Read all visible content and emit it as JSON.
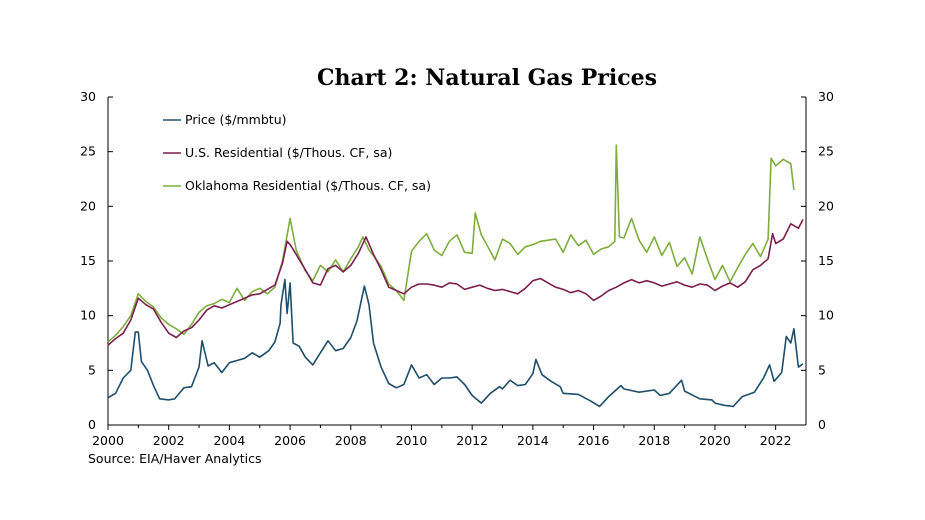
{
  "chart_data": {
    "type": "line",
    "title": "Chart 2: Natural Gas Prices",
    "source": "Source: EIA/Haver Analytics",
    "xlim": [
      2000,
      2023
    ],
    "x_ticks": [
      "2000",
      "2002",
      "2004",
      "2006",
      "2008",
      "2010",
      "2012",
      "2014",
      "2016",
      "2018",
      "2020",
      "2022"
    ],
    "ylim": [
      0,
      30
    ],
    "y_ticks": [
      "0",
      "5",
      "10",
      "15",
      "20",
      "25",
      "30"
    ],
    "y2_ticks": [
      "0",
      "5",
      "10",
      "15",
      "20",
      "25",
      "30"
    ],
    "legend_position": "top-left",
    "grid": false,
    "series": [
      {
        "name": "Price ($/mmbtu)",
        "color": "#1f4e6b",
        "points": [
          [
            2000.0,
            2.5
          ],
          [
            2000.25,
            2.9
          ],
          [
            2000.5,
            4.3
          ],
          [
            2000.75,
            5.0
          ],
          [
            2000.9,
            8.5
          ],
          [
            2001.0,
            8.5
          ],
          [
            2001.1,
            5.8
          ],
          [
            2001.3,
            5.0
          ],
          [
            2001.5,
            3.6
          ],
          [
            2001.7,
            2.4
          ],
          [
            2002.0,
            2.3
          ],
          [
            2002.2,
            2.4
          ],
          [
            2002.5,
            3.4
          ],
          [
            2002.75,
            3.5
          ],
          [
            2003.0,
            5.3
          ],
          [
            2003.1,
            7.7
          ],
          [
            2003.3,
            5.4
          ],
          [
            2003.5,
            5.7
          ],
          [
            2003.75,
            4.8
          ],
          [
            2004.0,
            5.7
          ],
          [
            2004.25,
            5.9
          ],
          [
            2004.5,
            6.1
          ],
          [
            2004.75,
            6.6
          ],
          [
            2005.0,
            6.2
          ],
          [
            2005.3,
            6.8
          ],
          [
            2005.5,
            7.6
          ],
          [
            2005.67,
            9.3
          ],
          [
            2005.7,
            11.0
          ],
          [
            2005.83,
            13.3
          ],
          [
            2005.9,
            10.2
          ],
          [
            2006.0,
            13.0
          ],
          [
            2006.1,
            7.5
          ],
          [
            2006.3,
            7.2
          ],
          [
            2006.5,
            6.2
          ],
          [
            2006.75,
            5.5
          ],
          [
            2007.0,
            6.6
          ],
          [
            2007.25,
            7.7
          ],
          [
            2007.5,
            6.8
          ],
          [
            2007.75,
            7.0
          ],
          [
            2008.0,
            8.0
          ],
          [
            2008.2,
            9.5
          ],
          [
            2008.45,
            12.7
          ],
          [
            2008.6,
            11.0
          ],
          [
            2008.75,
            7.5
          ],
          [
            2009.0,
            5.3
          ],
          [
            2009.25,
            3.8
          ],
          [
            2009.5,
            3.4
          ],
          [
            2009.75,
            3.7
          ],
          [
            2010.0,
            5.5
          ],
          [
            2010.25,
            4.3
          ],
          [
            2010.5,
            4.6
          ],
          [
            2010.75,
            3.7
          ],
          [
            2011.0,
            4.3
          ],
          [
            2011.25,
            4.3
          ],
          [
            2011.5,
            4.4
          ],
          [
            2011.75,
            3.7
          ],
          [
            2012.0,
            2.7
          ],
          [
            2012.3,
            2.0
          ],
          [
            2012.6,
            2.9
          ],
          [
            2012.9,
            3.5
          ],
          [
            2013.0,
            3.3
          ],
          [
            2013.25,
            4.1
          ],
          [
            2013.5,
            3.6
          ],
          [
            2013.75,
            3.7
          ],
          [
            2014.0,
            4.7
          ],
          [
            2014.1,
            6.0
          ],
          [
            2014.3,
            4.6
          ],
          [
            2014.6,
            4.0
          ],
          [
            2014.9,
            3.5
          ],
          [
            2015.0,
            2.9
          ],
          [
            2015.5,
            2.8
          ],
          [
            2015.9,
            2.2
          ],
          [
            2016.2,
            1.7
          ],
          [
            2016.5,
            2.6
          ],
          [
            2016.9,
            3.6
          ],
          [
            2017.0,
            3.3
          ],
          [
            2017.5,
            3.0
          ],
          [
            2018.0,
            3.2
          ],
          [
            2018.2,
            2.7
          ],
          [
            2018.5,
            2.9
          ],
          [
            2018.9,
            4.1
          ],
          [
            2019.0,
            3.1
          ],
          [
            2019.5,
            2.4
          ],
          [
            2019.9,
            2.3
          ],
          [
            2020.0,
            2.0
          ],
          [
            2020.3,
            1.8
          ],
          [
            2020.6,
            1.7
          ],
          [
            2020.9,
            2.6
          ],
          [
            2021.0,
            2.7
          ],
          [
            2021.3,
            3.0
          ],
          [
            2021.6,
            4.3
          ],
          [
            2021.8,
            5.5
          ],
          [
            2021.95,
            4.0
          ],
          [
            2022.2,
            4.8
          ],
          [
            2022.35,
            8.1
          ],
          [
            2022.5,
            7.5
          ],
          [
            2022.6,
            8.8
          ],
          [
            2022.75,
            5.3
          ],
          [
            2022.9,
            5.6
          ]
        ]
      },
      {
        "name": "U.S. Residential ($/Thous. CF, sa)",
        "color": "#7b1f4e",
        "points": [
          [
            2000.0,
            7.3
          ],
          [
            2000.25,
            7.9
          ],
          [
            2000.5,
            8.4
          ],
          [
            2000.75,
            9.6
          ],
          [
            2001.0,
            11.6
          ],
          [
            2001.25,
            11.0
          ],
          [
            2001.5,
            10.6
          ],
          [
            2001.75,
            9.4
          ],
          [
            2002.0,
            8.4
          ],
          [
            2002.25,
            8.0
          ],
          [
            2002.5,
            8.6
          ],
          [
            2002.75,
            8.9
          ],
          [
            2003.0,
            9.6
          ],
          [
            2003.25,
            10.5
          ],
          [
            2003.5,
            10.9
          ],
          [
            2003.75,
            10.7
          ],
          [
            2004.0,
            11.0
          ],
          [
            2004.25,
            11.3
          ],
          [
            2004.5,
            11.6
          ],
          [
            2004.75,
            11.9
          ],
          [
            2005.0,
            12.0
          ],
          [
            2005.25,
            12.4
          ],
          [
            2005.5,
            12.8
          ],
          [
            2005.75,
            14.8
          ],
          [
            2005.9,
            16.8
          ],
          [
            2006.0,
            16.5
          ],
          [
            2006.2,
            15.6
          ],
          [
            2006.5,
            14.2
          ],
          [
            2006.75,
            13.0
          ],
          [
            2007.0,
            12.8
          ],
          [
            2007.25,
            14.3
          ],
          [
            2007.5,
            14.6
          ],
          [
            2007.75,
            14.0
          ],
          [
            2008.0,
            14.6
          ],
          [
            2008.25,
            15.7
          ],
          [
            2008.5,
            17.2
          ],
          [
            2008.75,
            15.6
          ],
          [
            2009.0,
            14.2
          ],
          [
            2009.25,
            12.6
          ],
          [
            2009.5,
            12.3
          ],
          [
            2009.75,
            12.0
          ],
          [
            2010.0,
            12.6
          ],
          [
            2010.25,
            12.9
          ],
          [
            2010.5,
            12.9
          ],
          [
            2010.75,
            12.8
          ],
          [
            2011.0,
            12.6
          ],
          [
            2011.25,
            13.0
          ],
          [
            2011.5,
            12.9
          ],
          [
            2011.75,
            12.4
          ],
          [
            2012.0,
            12.6
          ],
          [
            2012.25,
            12.8
          ],
          [
            2012.5,
            12.5
          ],
          [
            2012.75,
            12.3
          ],
          [
            2013.0,
            12.4
          ],
          [
            2013.25,
            12.2
          ],
          [
            2013.5,
            12.0
          ],
          [
            2013.75,
            12.5
          ],
          [
            2014.0,
            13.2
          ],
          [
            2014.25,
            13.4
          ],
          [
            2014.5,
            13.0
          ],
          [
            2014.75,
            12.6
          ],
          [
            2015.0,
            12.4
          ],
          [
            2015.25,
            12.1
          ],
          [
            2015.5,
            12.3
          ],
          [
            2015.75,
            12.0
          ],
          [
            2016.0,
            11.4
          ],
          [
            2016.25,
            11.8
          ],
          [
            2016.5,
            12.3
          ],
          [
            2016.75,
            12.6
          ],
          [
            2017.0,
            13.0
          ],
          [
            2017.25,
            13.3
          ],
          [
            2017.5,
            13.0
          ],
          [
            2017.75,
            13.2
          ],
          [
            2018.0,
            13.0
          ],
          [
            2018.25,
            12.7
          ],
          [
            2018.5,
            12.9
          ],
          [
            2018.75,
            13.1
          ],
          [
            2019.0,
            12.8
          ],
          [
            2019.25,
            12.6
          ],
          [
            2019.5,
            12.9
          ],
          [
            2019.75,
            12.8
          ],
          [
            2020.0,
            12.3
          ],
          [
            2020.25,
            12.7
          ],
          [
            2020.5,
            13.0
          ],
          [
            2020.75,
            12.6
          ],
          [
            2021.0,
            13.1
          ],
          [
            2021.25,
            14.2
          ],
          [
            2021.5,
            14.6
          ],
          [
            2021.75,
            15.2
          ],
          [
            2021.9,
            17.5
          ],
          [
            2022.0,
            16.6
          ],
          [
            2022.25,
            17.0
          ],
          [
            2022.5,
            18.4
          ],
          [
            2022.75,
            18.0
          ],
          [
            2022.9,
            18.8
          ]
        ]
      },
      {
        "name": "Oklahoma Residential ($/Thous. CF, sa)",
        "color": "#7fad3d",
        "points": [
          [
            2000.0,
            7.6
          ],
          [
            2000.25,
            8.2
          ],
          [
            2000.5,
            9.0
          ],
          [
            2000.75,
            10.0
          ],
          [
            2001.0,
            12.0
          ],
          [
            2001.25,
            11.3
          ],
          [
            2001.5,
            10.8
          ],
          [
            2001.75,
            9.8
          ],
          [
            2002.0,
            9.2
          ],
          [
            2002.25,
            8.8
          ],
          [
            2002.5,
            8.3
          ],
          [
            2002.75,
            9.2
          ],
          [
            2003.0,
            10.3
          ],
          [
            2003.25,
            10.9
          ],
          [
            2003.5,
            11.1
          ],
          [
            2003.75,
            11.5
          ],
          [
            2004.0,
            11.2
          ],
          [
            2004.25,
            12.5
          ],
          [
            2004.5,
            11.4
          ],
          [
            2004.75,
            12.2
          ],
          [
            2005.0,
            12.5
          ],
          [
            2005.25,
            12.0
          ],
          [
            2005.5,
            12.6
          ],
          [
            2005.75,
            15.0
          ],
          [
            2006.0,
            18.9
          ],
          [
            2006.2,
            16.0
          ],
          [
            2006.5,
            14.1
          ],
          [
            2006.75,
            13.2
          ],
          [
            2007.0,
            14.6
          ],
          [
            2007.25,
            14.0
          ],
          [
            2007.5,
            15.1
          ],
          [
            2007.75,
            14.0
          ],
          [
            2008.0,
            15.2
          ],
          [
            2008.25,
            16.3
          ],
          [
            2008.4,
            17.2
          ],
          [
            2008.6,
            16.0
          ],
          [
            2008.75,
            15.5
          ],
          [
            2009.0,
            14.5
          ],
          [
            2009.25,
            12.9
          ],
          [
            2009.5,
            12.3
          ],
          [
            2009.75,
            11.4
          ],
          [
            2010.0,
            15.9
          ],
          [
            2010.25,
            16.8
          ],
          [
            2010.5,
            17.5
          ],
          [
            2010.75,
            16.0
          ],
          [
            2011.0,
            15.5
          ],
          [
            2011.25,
            16.8
          ],
          [
            2011.5,
            17.4
          ],
          [
            2011.75,
            15.8
          ],
          [
            2012.0,
            15.7
          ],
          [
            2012.1,
            19.4
          ],
          [
            2012.3,
            17.4
          ],
          [
            2012.5,
            16.4
          ],
          [
            2012.75,
            15.1
          ],
          [
            2013.0,
            17.0
          ],
          [
            2013.25,
            16.6
          ],
          [
            2013.5,
            15.6
          ],
          [
            2013.75,
            16.3
          ],
          [
            2014.0,
            16.5
          ],
          [
            2014.25,
            16.8
          ],
          [
            2014.5,
            16.9
          ],
          [
            2014.75,
            17.0
          ],
          [
            2015.0,
            15.8
          ],
          [
            2015.25,
            17.4
          ],
          [
            2015.5,
            16.4
          ],
          [
            2015.75,
            16.9
          ],
          [
            2016.0,
            15.6
          ],
          [
            2016.25,
            16.1
          ],
          [
            2016.5,
            16.3
          ],
          [
            2016.7,
            16.8
          ],
          [
            2016.75,
            25.6
          ],
          [
            2016.85,
            17.2
          ],
          [
            2017.0,
            17.1
          ],
          [
            2017.25,
            18.9
          ],
          [
            2017.5,
            16.9
          ],
          [
            2017.75,
            15.8
          ],
          [
            2018.0,
            17.2
          ],
          [
            2018.25,
            15.5
          ],
          [
            2018.5,
            16.7
          ],
          [
            2018.75,
            14.5
          ],
          [
            2019.0,
            15.3
          ],
          [
            2019.25,
            13.8
          ],
          [
            2019.5,
            17.2
          ],
          [
            2019.75,
            15.2
          ],
          [
            2020.0,
            13.3
          ],
          [
            2020.25,
            14.6
          ],
          [
            2020.5,
            13.1
          ],
          [
            2020.75,
            14.4
          ],
          [
            2021.0,
            15.6
          ],
          [
            2021.25,
            16.6
          ],
          [
            2021.5,
            15.4
          ],
          [
            2021.75,
            17.0
          ],
          [
            2021.85,
            24.4
          ],
          [
            2022.0,
            23.7
          ],
          [
            2022.25,
            24.3
          ],
          [
            2022.5,
            23.9
          ],
          [
            2022.6,
            21.5
          ]
        ]
      }
    ]
  }
}
